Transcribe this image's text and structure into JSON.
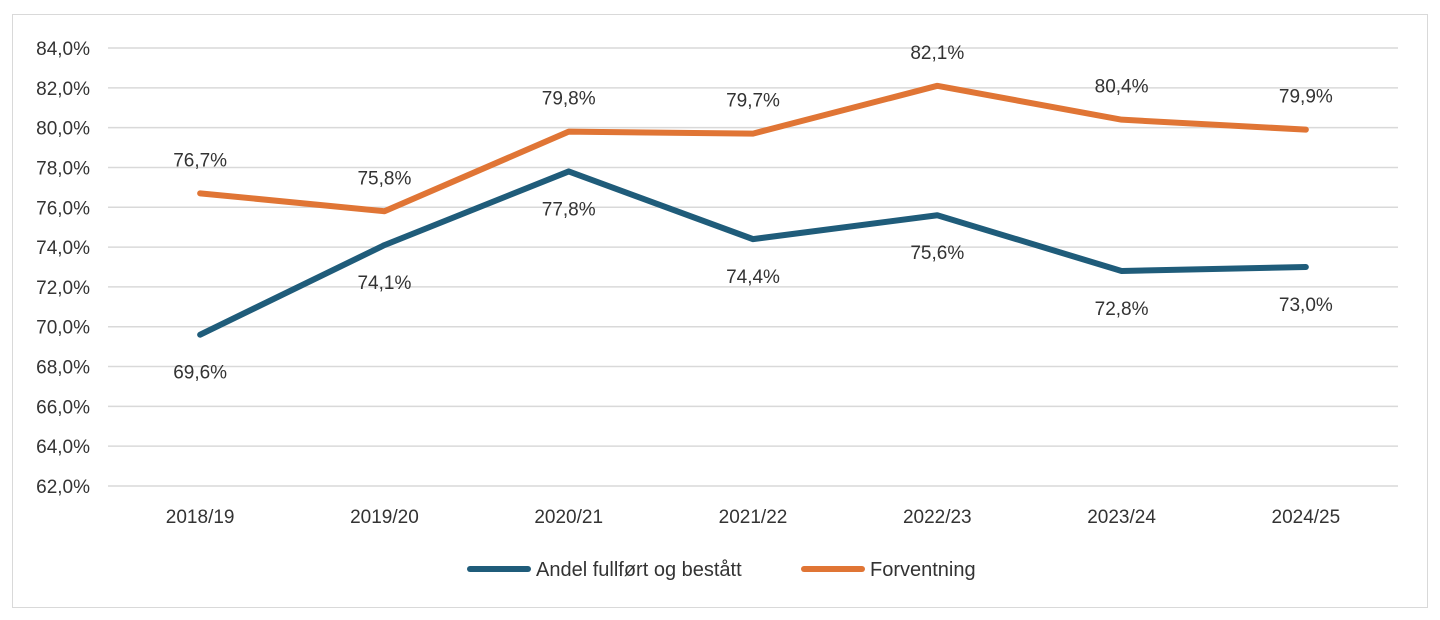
{
  "chart_data": {
    "type": "line",
    "categories": [
      "2018/19",
      "2019/20",
      "2020/21",
      "2021/22",
      "2022/23",
      "2023/24",
      "2024/25"
    ],
    "series": [
      {
        "name": "Andel fullført og bestått",
        "color": "#1f5c7a",
        "values": [
          69.6,
          74.1,
          77.8,
          74.4,
          75.6,
          72.8,
          73.0
        ],
        "labels": [
          "69,6%",
          "74,1%",
          "77,8%",
          "74,4%",
          "75,6%",
          "72,8%",
          "73,0%"
        ],
        "label_position": "below"
      },
      {
        "name": "Forventning",
        "color": "#e07535",
        "values": [
          76.7,
          75.8,
          79.8,
          79.7,
          82.1,
          80.4,
          79.9
        ],
        "labels": [
          "76,7%",
          "75,8%",
          "79,8%",
          "79,7%",
          "82,1%",
          "80,4%",
          "79,9%"
        ],
        "label_position": "above"
      }
    ],
    "ylim": [
      62,
      84
    ],
    "yticks": [
      62,
      64,
      66,
      68,
      70,
      72,
      74,
      76,
      78,
      80,
      82,
      84
    ],
    "ytick_labels": [
      "62,0%",
      "64,0%",
      "66,0%",
      "68,0%",
      "70,0%",
      "72,0%",
      "74,0%",
      "76,0%",
      "78,0%",
      "80,0%",
      "82,0%",
      "84,0%"
    ],
    "grid": true,
    "gridline_color": "#d9d9d9",
    "legend_position": "bottom",
    "title": "",
    "xlabel": "",
    "ylabel": ""
  }
}
